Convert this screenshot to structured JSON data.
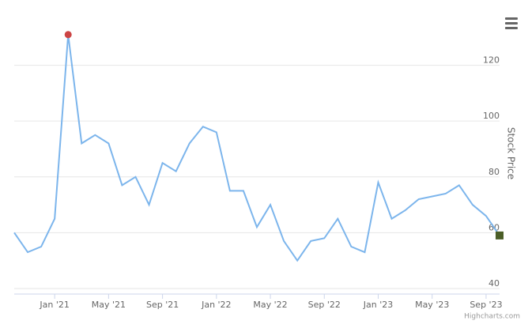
{
  "chart_data": {
    "type": "line",
    "y_axis_title": "Stock Price",
    "credits": "Highcharts.com",
    "x": [
      "2020-10",
      "2020-11",
      "2020-12",
      "2021-01",
      "2021-02",
      "2021-03",
      "2021-04",
      "2021-05",
      "2021-06",
      "2021-07",
      "2021-08",
      "2021-09",
      "2021-10",
      "2021-11",
      "2021-12",
      "2022-01",
      "2022-02",
      "2022-03",
      "2022-04",
      "2022-05",
      "2022-06",
      "2022-07",
      "2022-08",
      "2022-09",
      "2022-10",
      "2022-11",
      "2022-12",
      "2023-01",
      "2023-02",
      "2023-03",
      "2023-04",
      "2023-05",
      "2023-06",
      "2023-07",
      "2023-08",
      "2023-09",
      "2023-10"
    ],
    "series": [
      {
        "color": "#7cb5ec",
        "values": [
          60,
          53,
          55,
          65,
          131,
          92,
          95,
          92,
          77,
          80,
          70,
          85,
          82,
          92,
          98,
          96,
          75,
          75,
          62,
          70,
          57,
          50,
          57,
          58,
          65,
          55,
          53,
          78,
          65,
          68,
          72,
          73,
          74,
          77,
          70,
          66,
          59
        ]
      }
    ],
    "max_marker_color": "#cc4444",
    "last_marker_color": "#4b5e27",
    "xlim": [
      "2020-10",
      "2023-10"
    ],
    "xticks": [
      {
        "value": "2021-01",
        "label": "Jan '21"
      },
      {
        "value": "2021-05",
        "label": "May '21"
      },
      {
        "value": "2021-09",
        "label": "Sep '21"
      },
      {
        "value": "2022-01",
        "label": "Jan '22"
      },
      {
        "value": "2022-05",
        "label": "May '22"
      },
      {
        "value": "2022-09",
        "label": "Sep '22"
      },
      {
        "value": "2023-01",
        "label": "Jan '23"
      },
      {
        "value": "2023-05",
        "label": "May '23"
      },
      {
        "value": "2023-09",
        "label": "Sep '23"
      }
    ],
    "ylim": [
      38,
      140
    ],
    "yticks": [
      40,
      60,
      80,
      100,
      120
    ],
    "grid": true
  }
}
